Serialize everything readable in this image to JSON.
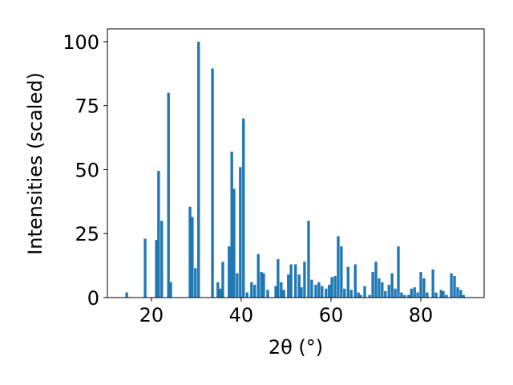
{
  "chart_data": {
    "type": "bar",
    "xlabel": "2θ (°)",
    "ylabel": "Intensities (scaled)",
    "x": [
      14.5,
      18.6,
      21.1,
      21.6,
      22.3,
      23.8,
      24.3,
      28.6,
      29.1,
      29.8,
      30.5,
      33.6,
      34.8,
      35.4,
      35.9,
      37.3,
      37.9,
      38.4,
      39.1,
      39.8,
      40.5,
      41.3,
      42.3,
      43.0,
      43.8,
      44.5,
      45.0,
      45.9,
      47.7,
      48.2,
      48.9,
      49.5,
      50.5,
      51.1,
      52.1,
      52.9,
      53.4,
      54.1,
      55.0,
      55.7,
      56.6,
      57.3,
      58.0,
      58.9,
      59.6,
      60.2,
      60.9,
      61.6,
      62.3,
      63.0,
      63.8,
      64.5,
      65.4,
      66.1,
      66.6,
      67.5,
      68.6,
      69.3,
      70.0,
      70.7,
      71.4,
      72.1,
      72.9,
      73.6,
      74.3,
      75.0,
      75.7,
      76.4,
      77.3,
      77.9,
      78.6,
      79.3,
      80.0,
      80.7,
      81.4,
      82.7,
      83.4,
      84.5,
      85.0,
      85.7,
      86.8,
      87.5,
      88.2,
      88.9,
      89.5
    ],
    "values": [
      2,
      23,
      22.5,
      49.5,
      30,
      80,
      6,
      35.5,
      31.5,
      11.5,
      100,
      89.5,
      6,
      3.5,
      14,
      20,
      57,
      42.5,
      9.5,
      51,
      70,
      2,
      6,
      5,
      17,
      10,
      9.5,
      3,
      4.5,
      15,
      6,
      3,
      9,
      13,
      13,
      9,
      4,
      14,
      30,
      7,
      5,
      6,
      4.5,
      3.5,
      5,
      8,
      8.5,
      24,
      20,
      3.5,
      12,
      3,
      13,
      2,
      1,
      4.5,
      1,
      10,
      14,
      7.5,
      6,
      2.5,
      5,
      9.5,
      3.5,
      20,
      2,
      1,
      1,
      3.5,
      4,
      2,
      10,
      7.5,
      2,
      11,
      2,
      3,
      2.5,
      1,
      9.5,
      8.5,
      4,
      3,
      1
    ],
    "bar_width": 0.6,
    "color": "#1f77b4",
    "xlim": [
      10.2,
      94.1
    ],
    "xticks": [
      20,
      40,
      60,
      80
    ],
    "ylim": [
      0,
      105
    ],
    "yticks": [
      0,
      25,
      50,
      75,
      100
    ]
  }
}
